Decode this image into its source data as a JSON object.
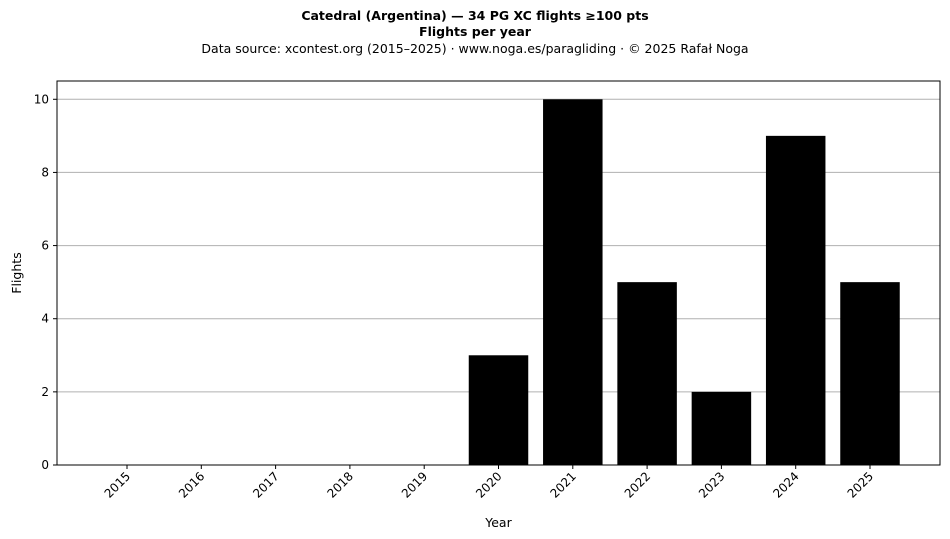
{
  "chart_data": {
    "type": "bar",
    "title": "Catedral (Argentina)  —  34 PG XC flights ≥100 pts",
    "subtitle": "Flights per year",
    "source_note": "Data source: xcontest.org (2015–2025)  ·  www.noga.es/paragliding  ·  © 2025 Rafał Noga",
    "xlabel": "Year",
    "ylabel": "Flights",
    "categories": [
      "2015",
      "2016",
      "2017",
      "2018",
      "2019",
      "2020",
      "2021",
      "2022",
      "2023",
      "2024",
      "2025"
    ],
    "values": [
      0,
      0,
      0,
      0,
      0,
      3,
      10,
      5,
      2,
      9,
      5
    ],
    "ylim": [
      0,
      10.5
    ],
    "yticks": [
      "0",
      "2",
      "4",
      "6",
      "8",
      "10"
    ],
    "grid": "horizontal",
    "bar_color": "#000000",
    "grid_color": "#b0b0b0"
  }
}
